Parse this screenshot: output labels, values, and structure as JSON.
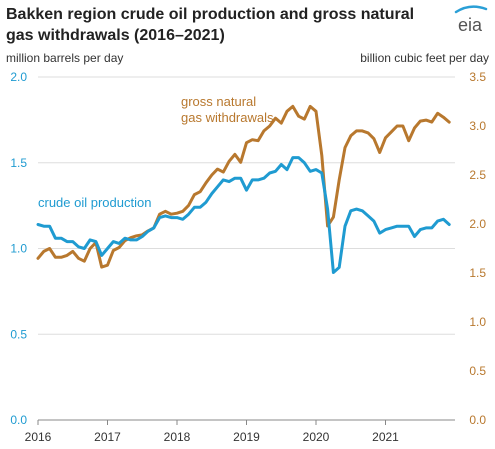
{
  "chart_data": {
    "type": "line",
    "title_line1": "Bakken region crude oil production and gross natural",
    "title_line2": "gas withdrawals (2016–2021)",
    "logo_text": "eia",
    "left_axis_label": "million barrels per day",
    "right_axis_label": "billion cubic feet per day",
    "left_ylim": [
      0,
      2.0
    ],
    "right_ylim": [
      0,
      3.5
    ],
    "left_ticks": [
      "0.0",
      "0.5",
      "1.0",
      "1.5",
      "2.0"
    ],
    "right_ticks": [
      "0.0",
      "0.5",
      "1.0",
      "1.5",
      "2.0",
      "2.5",
      "3.0",
      "3.5"
    ],
    "x_start": 2016,
    "x_end": 2022,
    "x_ticks": [
      "2016",
      "2017",
      "2018",
      "2019",
      "2020",
      "2021"
    ],
    "grid": true,
    "colors": {
      "oil": "#1f9bd1",
      "gas": "#b8782e",
      "left_axis": "#1f9bd1",
      "right_axis": "#b8782e",
      "grid": "#dddddd"
    },
    "series": [
      {
        "name": "crude oil production",
        "axis": "left",
        "values": [
          1.14,
          1.13,
          1.13,
          1.06,
          1.06,
          1.04,
          1.04,
          1.01,
          1.0,
          1.05,
          1.04,
          0.96,
          1.0,
          1.04,
          1.03,
          1.06,
          1.05,
          1.05,
          1.07,
          1.1,
          1.12,
          1.18,
          1.19,
          1.18,
          1.18,
          1.17,
          1.2,
          1.24,
          1.24,
          1.27,
          1.32,
          1.36,
          1.4,
          1.39,
          1.41,
          1.41,
          1.34,
          1.4,
          1.4,
          1.41,
          1.44,
          1.45,
          1.49,
          1.46,
          1.53,
          1.53,
          1.5,
          1.45,
          1.46,
          1.44,
          1.23,
          0.86,
          0.89,
          1.13,
          1.22,
          1.23,
          1.22,
          1.19,
          1.16,
          1.09,
          1.11,
          1.12,
          1.13,
          1.13,
          1.13,
          1.07,
          1.11,
          1.12,
          1.12,
          1.16,
          1.17,
          1.14
        ]
      },
      {
        "name": "gross natural gas withdrawals",
        "axis": "right",
        "values": [
          1.65,
          1.72,
          1.75,
          1.66,
          1.66,
          1.68,
          1.72,
          1.65,
          1.62,
          1.75,
          1.81,
          1.56,
          1.58,
          1.73,
          1.76,
          1.83,
          1.86,
          1.88,
          1.89,
          1.93,
          1.96,
          2.1,
          2.13,
          2.1,
          2.11,
          2.13,
          2.19,
          2.3,
          2.33,
          2.42,
          2.5,
          2.56,
          2.53,
          2.64,
          2.71,
          2.63,
          2.83,
          2.86,
          2.85,
          2.95,
          3.0,
          3.08,
          3.03,
          3.15,
          3.2,
          3.1,
          3.07,
          3.2,
          3.15,
          2.7,
          1.98,
          2.07,
          2.45,
          2.78,
          2.9,
          2.95,
          2.95,
          2.93,
          2.87,
          2.73,
          2.88,
          2.94,
          3.0,
          3.0,
          2.85,
          2.98,
          3.05,
          3.06,
          3.04,
          3.13,
          3.09,
          3.04
        ]
      }
    ],
    "annotations": {
      "oil_label": "crude oil production",
      "gas_label_line1": "gross natural",
      "gas_label_line2": "gas withdrawals"
    }
  }
}
